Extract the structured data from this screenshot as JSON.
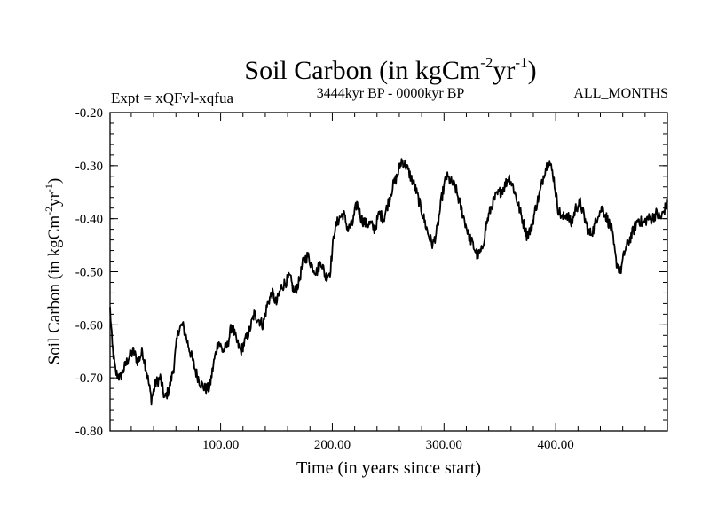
{
  "chart_data": {
    "type": "line",
    "title": {
      "base": "Soil Carbon (in kgCm",
      "sup1": "-2",
      "mid": "yr",
      "sup2": "-1",
      "end": ")"
    },
    "subtitle_left": "Expt = xQFvl-xqfua",
    "subtitle_center": "3444kyr BP - 0000kyr BP",
    "subtitle_right": "ALL_MONTHS",
    "xlabel": "Time (in years since start)",
    "ylabel": {
      "base": "Soil Carbon (in kgCm",
      "sup1": "-2",
      "mid": "yr",
      "sup2": "-1",
      "end": ")"
    },
    "xlim": [
      1,
      500
    ],
    "ylim": [
      -0.8,
      -0.2
    ],
    "xticks": [
      {
        "value": 100,
        "label": "100.00"
      },
      {
        "value": 200,
        "label": "200.00"
      },
      {
        "value": 300,
        "label": "300.00"
      },
      {
        "value": 400,
        "label": "400.00"
      }
    ],
    "yticks": [
      {
        "value": -0.8,
        "label": "-0.80"
      },
      {
        "value": -0.7,
        "label": "-0.70"
      },
      {
        "value": -0.6,
        "label": "-0.60"
      },
      {
        "value": -0.5,
        "label": "-0.50"
      },
      {
        "value": -0.4,
        "label": "-0.40"
      },
      {
        "value": -0.3,
        "label": "-0.30"
      },
      {
        "value": -0.2,
        "label": "-0.20"
      }
    ],
    "series": [
      {
        "name": "Soil Carbon",
        "color": "#000000",
        "x": [
          1,
          3,
          6,
          10,
          14,
          18,
          22,
          26,
          30,
          34,
          38,
          42,
          46,
          50,
          54,
          58,
          62,
          66,
          70,
          74,
          78,
          82,
          86,
          90,
          94,
          98,
          102,
          106,
          110,
          114,
          118,
          122,
          126,
          130,
          134,
          138,
          142,
          146,
          150,
          154,
          158,
          162,
          166,
          170,
          174,
          178,
          182,
          186,
          190,
          194,
          198,
          202,
          206,
          210,
          214,
          218,
          222,
          226,
          230,
          234,
          238,
          242,
          246,
          250,
          254,
          258,
          262,
          266,
          270,
          274,
          278,
          282,
          286,
          290,
          294,
          298,
          302,
          306,
          310,
          314,
          318,
          322,
          326,
          330,
          334,
          338,
          342,
          346,
          350,
          354,
          358,
          362,
          366,
          370,
          374,
          378,
          382,
          386,
          390,
          394,
          398,
          402,
          406,
          410,
          414,
          418,
          422,
          426,
          430,
          434,
          438,
          442,
          446,
          450,
          454,
          458,
          462,
          466,
          470,
          474,
          478,
          482,
          486,
          490,
          494,
          498,
          500
        ],
        "values": [
          -0.57,
          -0.64,
          -0.69,
          -0.7,
          -0.68,
          -0.66,
          -0.65,
          -0.67,
          -0.65,
          -0.69,
          -0.74,
          -0.71,
          -0.7,
          -0.74,
          -0.72,
          -0.68,
          -0.61,
          -0.6,
          -0.63,
          -0.66,
          -0.69,
          -0.71,
          -0.72,
          -0.72,
          -0.67,
          -0.63,
          -0.65,
          -0.64,
          -0.6,
          -0.63,
          -0.65,
          -0.63,
          -0.61,
          -0.58,
          -0.59,
          -0.6,
          -0.56,
          -0.54,
          -0.56,
          -0.53,
          -0.52,
          -0.51,
          -0.54,
          -0.52,
          -0.48,
          -0.47,
          -0.49,
          -0.5,
          -0.48,
          -0.51,
          -0.5,
          -0.42,
          -0.4,
          -0.39,
          -0.42,
          -0.41,
          -0.37,
          -0.4,
          -0.41,
          -0.41,
          -0.42,
          -0.39,
          -0.4,
          -0.37,
          -0.34,
          -0.32,
          -0.29,
          -0.3,
          -0.32,
          -0.34,
          -0.37,
          -0.4,
          -0.43,
          -0.45,
          -0.42,
          -0.36,
          -0.32,
          -0.33,
          -0.34,
          -0.37,
          -0.4,
          -0.43,
          -0.45,
          -0.47,
          -0.46,
          -0.41,
          -0.38,
          -0.36,
          -0.35,
          -0.34,
          -0.32,
          -0.34,
          -0.37,
          -0.4,
          -0.43,
          -0.42,
          -0.38,
          -0.35,
          -0.31,
          -0.29,
          -0.32,
          -0.38,
          -0.4,
          -0.39,
          -0.41,
          -0.38,
          -0.37,
          -0.4,
          -0.43,
          -0.42,
          -0.39,
          -0.38,
          -0.4,
          -0.42,
          -0.48,
          -0.5,
          -0.46,
          -0.44,
          -0.42,
          -0.4,
          -0.41,
          -0.4,
          -0.4,
          -0.39,
          -0.4,
          -0.38,
          -0.37
        ]
      }
    ]
  }
}
